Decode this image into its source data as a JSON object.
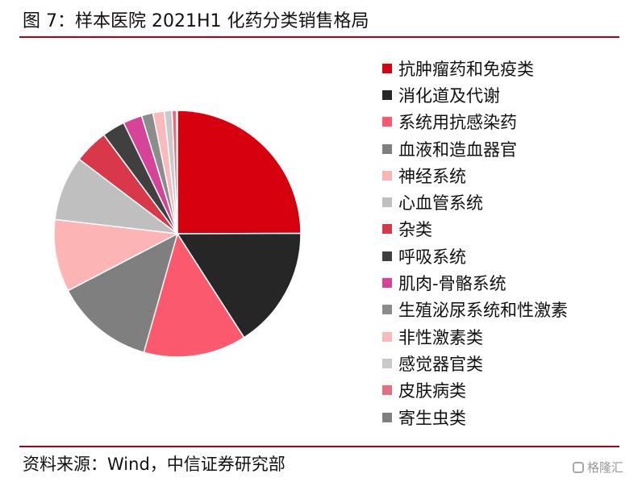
{
  "title": "图 7：样本医院 2021H1 化药分类销售格局",
  "source": "资料来源：Wind，中信证券研究部",
  "watermark": "格隆汇",
  "chart_data": {
    "type": "pie",
    "title": "图 7：样本医院 2021H1 化药分类销售格局",
    "legend_position": "right",
    "start_angle_deg": 0,
    "direction": "clockwise",
    "slices": [
      {
        "label": "抗肿瘤药和免疫类",
        "value": 25.0,
        "color": "#d7000f"
      },
      {
        "label": "消化道及代谢",
        "value": 16.0,
        "color": "#262626"
      },
      {
        "label": "系统用抗感染药",
        "value": 13.5,
        "color": "#fb5a6e"
      },
      {
        "label": "血液和造血器官",
        "value": 13.0,
        "color": "#7f7f7f"
      },
      {
        "label": "神经系统",
        "value": 9.5,
        "color": "#fdb4b4"
      },
      {
        "label": "心血管系统",
        "value": 8.5,
        "color": "#bfbfbf"
      },
      {
        "label": "杂类",
        "value": 4.5,
        "color": "#d9384b"
      },
      {
        "label": "呼吸系统",
        "value": 3.0,
        "color": "#404040"
      },
      {
        "label": "肌肉-骨骼系统",
        "value": 2.5,
        "color": "#d6449a"
      },
      {
        "label": "生殖泌尿系统和性激素",
        "value": 1.5,
        "color": "#8c8c8c"
      },
      {
        "label": "非性激素类",
        "value": 1.5,
        "color": "#f9b9bd"
      },
      {
        "label": "感觉器官类",
        "value": 1.0,
        "color": "#c9c9c9"
      },
      {
        "label": "皮肤病类",
        "value": 0.6,
        "color": "#e07080"
      },
      {
        "label": "寄生虫类",
        "value": 0.1,
        "color": "#808080"
      }
    ]
  }
}
